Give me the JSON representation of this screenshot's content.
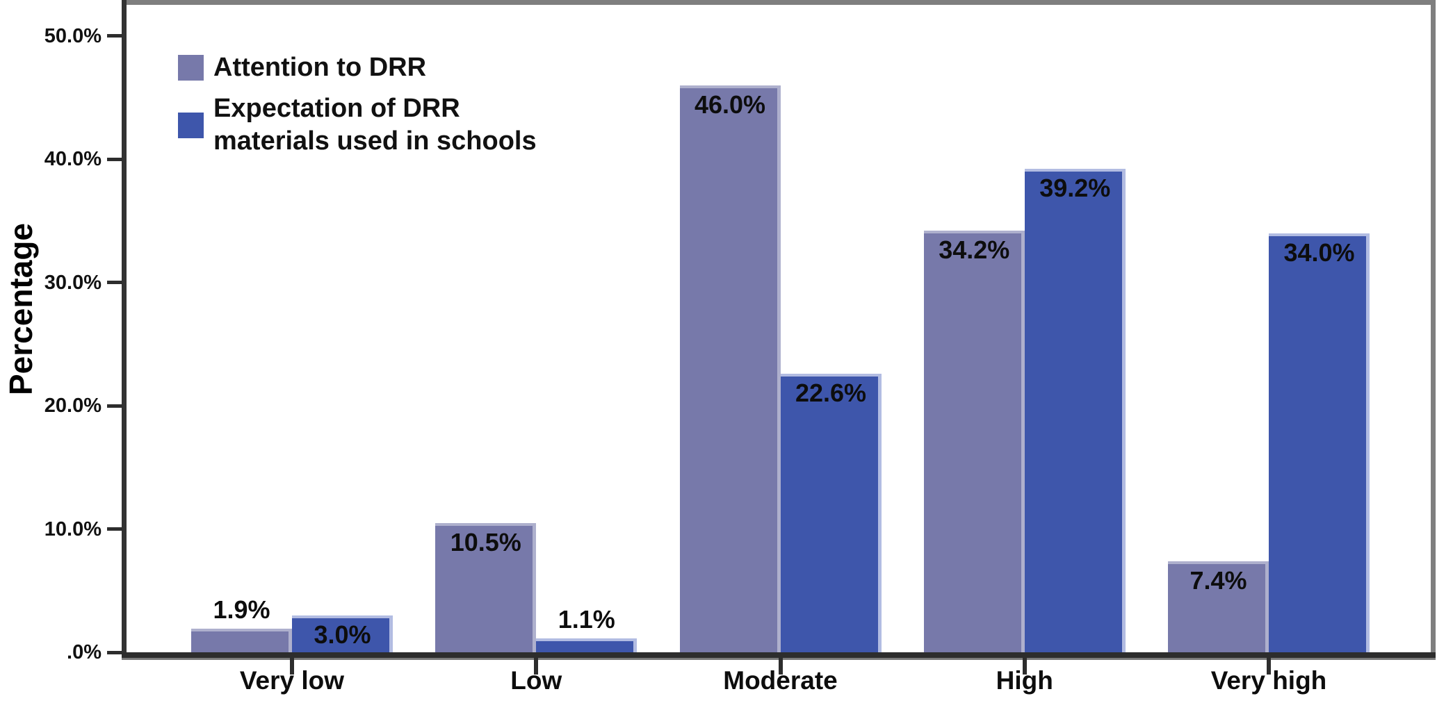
{
  "chart_data": {
    "type": "bar",
    "title": "",
    "categories": [
      "Very low",
      "Low",
      "Moderate",
      "High",
      "Very high"
    ],
    "series": [
      {
        "name": "Attention to DRR",
        "color": "#7779aa",
        "edge_color": "#aeb0cd",
        "values": [
          1.9,
          10.5,
          46.0,
          34.2,
          7.4
        ],
        "labels": [
          "1.9%",
          "10.5%",
          "46.0%",
          "34.2%",
          "7.4%"
        ]
      },
      {
        "name": "Expectation of DRR materials used in schools",
        "color": "#3e56ab",
        "edge_color": "#b2bce2",
        "values": [
          3.0,
          1.1,
          22.6,
          39.2,
          34.0
        ],
        "labels": [
          "3.0%",
          "1.1%",
          "22.6%",
          "39.2%",
          "34.0%"
        ]
      }
    ],
    "xlabel": "",
    "ylabel": "Percentage",
    "ylim": [
      0,
      50
    ],
    "yticks": [
      {
        "value": 0,
        "label": ".0%"
      },
      {
        "value": 10,
        "label": "10.0%"
      },
      {
        "value": 20,
        "label": "20.0%"
      },
      {
        "value": 30,
        "label": "30.0%"
      },
      {
        "value": 40,
        "label": "40.0%"
      },
      {
        "value": 50,
        "label": "50.0%"
      }
    ],
    "grid": false,
    "legend_position": "top-left",
    "axis_color": "#2d2d2d",
    "frame_color": "#7f7f7f"
  }
}
